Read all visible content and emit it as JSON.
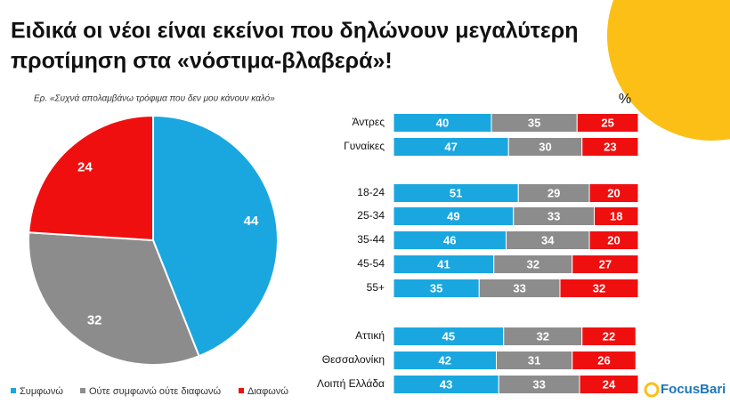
{
  "title": [
    "Ειδικά οι νέοι είναι εκείνοι που δηλώνουν μεγαλύτερη",
    "προτίμηση στα «νόστιμα-βλαβερά»!"
  ],
  "subtitle": "Ερ. «Συχνά απολαμβάνω τρόφιμα που δεν μου κάνουν καλό»",
  "unit": "%",
  "logo": "FocusBari",
  "chart_data": [
    {
      "type": "pie",
      "categories": [
        "Συμφωνώ",
        "Ούτε συμφωνώ ούτε διαφωνώ",
        "Διαφωνώ"
      ],
      "values": [
        44,
        32,
        24
      ],
      "colors": [
        "#1aa7e0",
        "#8c8c8c",
        "#f00f0f"
      ],
      "legend": "bottom"
    },
    {
      "type": "stacked-bar-horizontal",
      "categories": [
        "Άντρες",
        "Γυναίκες",
        "18-24",
        "25-34",
        "35-44",
        "45-54",
        "55+",
        "Αττική",
        "Θεσσαλονίκη",
        "Λοιπή Ελλάδα"
      ],
      "series": [
        {
          "color": "#1aa7e0",
          "values": [
            40,
            47,
            51,
            49,
            46,
            41,
            35,
            45,
            42,
            43
          ]
        },
        {
          "color": "#8c8c8c",
          "values": [
            35,
            30,
            29,
            33,
            34,
            32,
            33,
            32,
            31,
            33
          ]
        },
        {
          "color": "#f00f0f",
          "values": [
            25,
            23,
            20,
            18,
            20,
            27,
            32,
            22,
            26,
            24
          ]
        }
      ],
      "xlim": [
        0,
        100
      ]
    }
  ]
}
